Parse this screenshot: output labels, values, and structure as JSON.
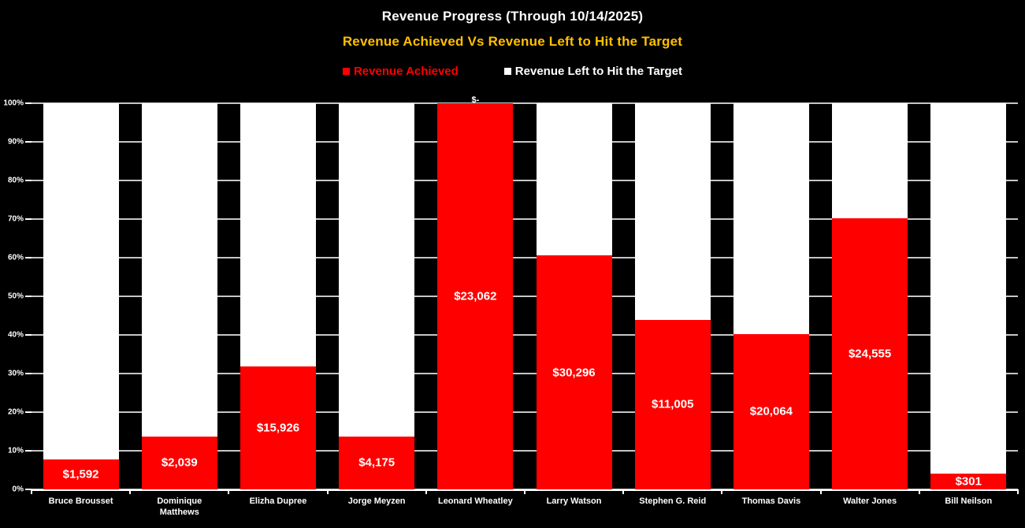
{
  "chart_data": {
    "type": "bar",
    "variant": "100-percent-stacked-column",
    "title": "Revenue Progress (Through 10/14/2025)",
    "subtitle": "Revenue Achieved Vs Revenue Left to Hit the Target",
    "legend_position": "top",
    "grid": true,
    "xlabel": "",
    "ylabel": "",
    "ylim": [
      0,
      100
    ],
    "y_ticks": [
      "100%",
      "90%",
      "80%",
      "70%",
      "60%",
      "50%",
      "40%",
      "30%",
      "20%",
      "10%",
      "0%"
    ],
    "categories": [
      "Bruce Brousset",
      "Dominique Matthews",
      "Elizha Dupree",
      "Jorge Meyzen",
      "Leonard Wheatley",
      "Larry Watson",
      "Stephen G. Reid",
      "Thomas Davis",
      "Walter Jones",
      "Bill Neilson"
    ],
    "series": [
      {
        "name": "Revenue Achieved",
        "color": "#FF0000",
        "percent_of_target": [
          7.8,
          13.7,
          31.8,
          13.7,
          100,
          60.6,
          43.9,
          40.3,
          70.2,
          4.1
        ],
        "data_labels": [
          "$1,592",
          "$2,039",
          "$15,926",
          "$4,175",
          "$23,062",
          "$30,296",
          "$11,005",
          "$20,064",
          "$24,555",
          "$301"
        ]
      },
      {
        "name": "Revenue Left to Hit the Target",
        "color": "#FFFFFF",
        "percent_of_target": [
          92.2,
          86.3,
          68.2,
          86.3,
          0,
          39.4,
          56.1,
          59.7,
          29.8,
          95.9
        ],
        "data_labels": [
          "",
          "",
          "",
          "",
          "$-",
          "",
          "",
          "",
          "",
          ""
        ]
      }
    ],
    "colors": {
      "background": "#000000",
      "gridline": "#C6C6C6",
      "axis": "#FFFFFF",
      "title": "#FFFFFF",
      "subtitle": "#FFC000",
      "value_label": "#FFFFFF",
      "achieved": "#FF0000",
      "remaining": "#FFFFFF"
    }
  }
}
